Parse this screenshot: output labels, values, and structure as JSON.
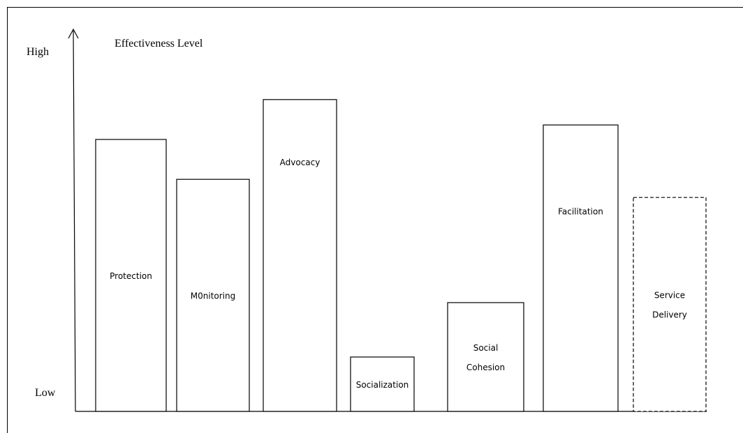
{
  "chart_data": {
    "type": "bar",
    "title": "Effectiveness Level",
    "ylabel_high": "High",
    "ylabel_low": "Low",
    "categories": [
      "Protection",
      "M0nitoring",
      "Advocacy",
      "Socialization",
      "Social Cohesion",
      "Facilitation",
      "Service Delivery"
    ],
    "label_lines": [
      [
        "Protection"
      ],
      [
        "M0nitoring"
      ],
      [
        "Advocacy"
      ],
      [
        "Socialization"
      ],
      [
        "Social",
        "Cohesion"
      ],
      [
        "Facilitation"
      ],
      [
        "Service",
        "Delivery"
      ]
    ],
    "values": [
      0.75,
      0.64,
      0.86,
      0.15,
      0.3,
      0.79,
      0.59
    ],
    "dashed": [
      false,
      false,
      false,
      false,
      false,
      false,
      true
    ],
    "ylim": [
      0,
      1
    ],
    "grid": false
  }
}
